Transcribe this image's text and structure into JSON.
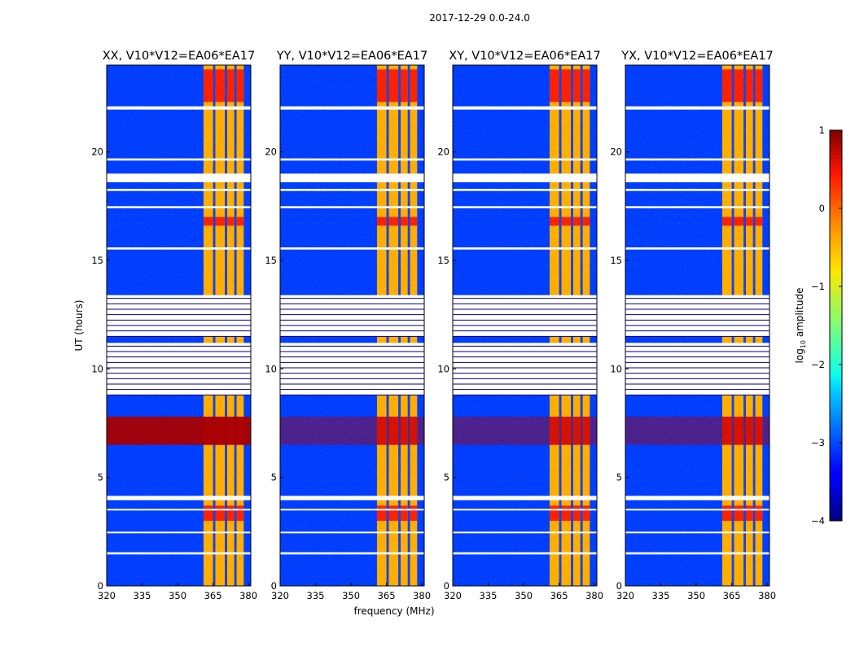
{
  "chart_data": {
    "type": "heatmap",
    "suptitle": "2017-12-29 0.0-24.0",
    "xlabel": "frequency (MHz)",
    "ylabel": "UT (hours)",
    "xlim": [
      320,
      381
    ],
    "ylim": [
      0,
      24
    ],
    "xticks": [
      320,
      335,
      350,
      365,
      380
    ],
    "yticks": [
      0,
      5,
      10,
      15,
      20
    ],
    "colormap": "jet",
    "colorbar": {
      "label": "log10 amplitude",
      "label_base": "log",
      "label_sub": "10",
      "label_rest": " amplitude",
      "min": -4,
      "max": 1,
      "ticks": [
        -4,
        -3,
        -2,
        -1,
        0,
        1
      ],
      "tick_labels": [
        "−4",
        "−3",
        "−2",
        "−1",
        "0",
        "1"
      ]
    },
    "panels": [
      {
        "title": "XX, V10*V12=EA06*EA17",
        "polarization": "XX"
      },
      {
        "title": "YY, V10*V12=EA06*EA17",
        "polarization": "YY"
      },
      {
        "title": "XY, V10*V12=EA06*EA17",
        "polarization": "XY"
      },
      {
        "title": "YX, V10*V12=EA06*EA17",
        "polarization": "YX"
      }
    ],
    "signal_band_mhz": [
      361,
      378
    ],
    "signal_bands_mhz": [
      [
        361,
        365
      ],
      [
        366,
        370
      ],
      [
        371,
        374
      ],
      [
        375,
        378
      ]
    ],
    "background_log_amplitude": -3.2,
    "flagged_ut_hours": [
      [
        1.45,
        1.55
      ],
      [
        2.45,
        2.5
      ],
      [
        3.5,
        3.55
      ],
      [
        3.95,
        4.15
      ],
      [
        8.8,
        11.2
      ],
      [
        11.5,
        13.4
      ],
      [
        15.5,
        15.6
      ],
      [
        17.4,
        17.5
      ],
      [
        18.2,
        18.3
      ],
      [
        18.6,
        19.0
      ],
      [
        19.6,
        19.7
      ],
      [
        21.95,
        22.1
      ]
    ],
    "strong_rfi_ut_hours": [
      [
        6.5,
        7.8
      ]
    ],
    "strong_signal_ut_hours": [
      [
        22.3,
        23.8
      ],
      [
        3.0,
        3.7
      ],
      [
        6.5,
        7.8
      ],
      [
        16.6,
        17.0
      ]
    ]
  }
}
